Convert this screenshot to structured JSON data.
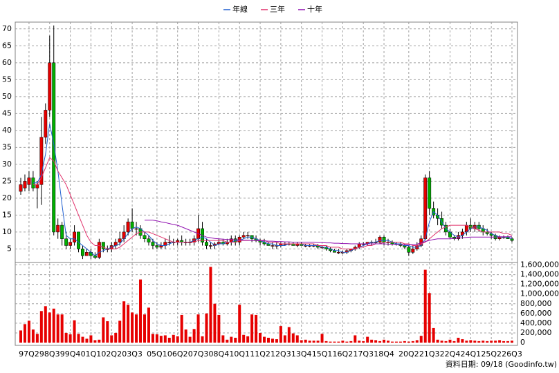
{
  "chart_data": {
    "type": "candlestick",
    "categories": [
      null,
      null,
      "97Q2",
      null,
      null,
      null,
      null,
      "98Q3",
      null,
      null,
      null,
      null,
      "99Q4",
      null,
      null,
      null,
      null,
      "01Q1",
      null,
      null,
      null,
      null,
      "02Q2",
      null,
      null,
      null,
      null,
      "03Q3",
      null,
      null,
      null,
      null,
      null,
      "05Q1",
      null,
      null,
      null,
      null,
      "06Q2",
      null,
      null,
      null,
      null,
      "07Q3",
      null,
      null,
      null,
      null,
      "08Q4",
      null,
      null,
      null,
      null,
      "10Q1",
      null,
      null,
      null,
      null,
      "11Q2",
      null,
      null,
      null,
      null,
      "12Q3",
      null,
      null,
      null,
      null,
      "13Q4",
      null,
      null,
      null,
      null,
      "15Q1",
      null,
      null,
      null,
      null,
      "16Q2",
      null,
      null,
      null,
      null,
      "17Q3",
      null,
      null,
      null,
      null,
      "18Q4",
      null,
      null,
      null,
      null,
      null,
      "20Q2",
      null,
      null,
      null,
      null,
      "21Q3",
      null,
      null,
      null,
      null,
      "22Q4",
      null,
      null,
      null,
      null,
      "24Q1",
      null,
      null,
      null,
      null,
      "25Q2",
      null,
      null,
      null,
      null,
      "26Q3"
    ],
    "open": [
      22,
      23,
      24,
      26,
      23,
      24,
      38,
      46,
      60,
      10,
      12,
      8,
      6,
      7,
      10,
      5,
      3,
      4,
      3,
      2.5,
      7,
      5,
      5,
      6,
      7,
      8,
      10,
      13,
      11,
      11,
      9,
      8,
      7,
      6,
      5.5,
      6,
      7,
      7,
      7,
      7.5,
      7,
      7,
      7,
      8,
      11,
      7,
      6,
      6,
      6.5,
      7,
      6.5,
      7,
      8,
      7,
      8.5,
      9,
      9,
      8,
      7.5,
      7,
      6.5,
      6,
      6,
      6,
      6.5,
      6.5,
      6.5,
      6,
      6.5,
      6,
      6,
      6,
      6,
      5.5,
      5.5,
      5,
      4.5,
      4,
      4,
      4,
      4.5,
      5,
      5.5,
      6.5,
      6.5,
      7,
      7,
      7,
      8.5,
      7,
      7,
      6.5,
      6.5,
      6,
      5.5,
      4,
      5,
      6,
      8,
      26,
      17,
      15,
      14,
      12,
      10,
      8.5,
      8,
      9,
      10,
      12,
      11,
      12,
      11,
      10,
      9.5,
      9,
      8,
      8.5,
      8.5,
      8
    ],
    "high": [
      26,
      27,
      28,
      28,
      25,
      44,
      48,
      68,
      71,
      14,
      13,
      10,
      8,
      12,
      10,
      6,
      5,
      5,
      4,
      8,
      7,
      6,
      7,
      8,
      10,
      12,
      14,
      17,
      13,
      12,
      10,
      9,
      8,
      7,
      7,
      8,
      9,
      8,
      8,
      9,
      8,
      8,
      9,
      15,
      13,
      8,
      7,
      7,
      8,
      8,
      8,
      9,
      9,
      9,
      10,
      10,
      9,
      9,
      8,
      8,
      7,
      7,
      7,
      7,
      7,
      7,
      7,
      7,
      7,
      6.5,
      6.5,
      6.5,
      6.5,
      6,
      6,
      5.5,
      5,
      5,
      4.5,
      5,
      5,
      6,
      7,
      7,
      7,
      7.5,
      8,
      9,
      9,
      8,
      7.5,
      7,
      7,
      6.5,
      6,
      6,
      7,
      9,
      27,
      28,
      19,
      17,
      16,
      13,
      11,
      9,
      10,
      11,
      13,
      14,
      13,
      13,
      12,
      11,
      10,
      9.5,
      9,
      9,
      9,
      8.5
    ],
    "low": [
      21,
      22,
      22,
      22,
      17,
      18,
      36,
      44,
      9,
      8,
      6,
      5,
      5,
      6,
      4,
      2,
      3,
      2,
      2,
      2,
      4,
      4,
      4,
      5,
      6,
      7,
      9,
      10,
      9,
      8,
      7,
      6,
      5,
      5,
      5,
      5,
      6,
      6,
      6,
      6,
      6,
      6,
      6,
      7,
      6,
      5,
      5,
      5,
      6,
      6,
      6,
      6,
      6,
      6,
      8,
      8,
      7,
      7,
      6,
      6,
      6,
      5,
      5,
      5.5,
      6,
      6,
      6,
      5.5,
      6,
      5.5,
      5.5,
      5.5,
      5,
      5,
      4.5,
      4,
      4,
      3.5,
      3.5,
      3.5,
      4,
      4.5,
      5,
      6,
      6,
      6,
      6.5,
      6.5,
      6,
      6,
      6,
      6,
      5.5,
      5,
      3,
      3.5,
      4.5,
      5.5,
      7.5,
      15,
      14,
      12,
      11,
      9,
      8,
      7.5,
      7.5,
      8,
      9,
      10,
      10,
      10,
      9,
      9,
      8,
      7.5,
      7.5,
      8,
      8,
      7
    ],
    "close": [
      24,
      25,
      26,
      23,
      24,
      38,
      46,
      60,
      10,
      12,
      8,
      6,
      7,
      10,
      5,
      3,
      4,
      3,
      2.5,
      7,
      5,
      5,
      6,
      7,
      8,
      10,
      13,
      11,
      11,
      9,
      8,
      7,
      6,
      5.5,
      6,
      7,
      7,
      7,
      7.5,
      7,
      7,
      7,
      8,
      11,
      7,
      6,
      6,
      6.5,
      7,
      6.5,
      7,
      8,
      7,
      8.5,
      9,
      9,
      8,
      7.5,
      7,
      6.5,
      6,
      6,
      6,
      6.5,
      6.5,
      6.5,
      6,
      6.5,
      6,
      6,
      6,
      6,
      5.5,
      5.5,
      5,
      4.5,
      4,
      4,
      4,
      4.5,
      5,
      5.5,
      6.5,
      6.5,
      7,
      7,
      7,
      8.5,
      7,
      7,
      6.5,
      6.5,
      6,
      5.5,
      4,
      5,
      6,
      8,
      26,
      17,
      15,
      14,
      12,
      10,
      8.5,
      8,
      9,
      10,
      12,
      11,
      12,
      11,
      10,
      9.5,
      9,
      8,
      8.5,
      8.5,
      8,
      7.5
    ],
    "up_color": "#e60000",
    "down_color": "#00b000",
    "ylim": [
      1,
      72
    ],
    "yticks": [
      5,
      10,
      15,
      20,
      25,
      30,
      35,
      40,
      45,
      50,
      55,
      60,
      65,
      70
    ],
    "grid": true,
    "legend": "top",
    "lines": [
      {
        "name": "年線",
        "color": "#1f5fd0",
        "values": [
          null,
          null,
          null,
          24.5,
          24.5,
          27,
          33,
          42,
          36,
          28,
          18,
          9,
          8,
          8,
          7,
          6,
          5,
          4,
          3,
          4,
          4.5,
          5,
          5.5,
          6,
          6.5,
          8,
          9.5,
          11,
          11.5,
          11,
          10,
          9,
          7.5,
          6.5,
          6,
          6,
          6.5,
          7,
          7,
          7,
          7,
          7,
          7.5,
          8,
          8.5,
          8,
          7,
          6,
          6.5,
          6.5,
          7,
          7,
          7.5,
          7.5,
          8,
          8.5,
          8.5,
          8,
          7.5,
          7,
          6.5,
          6.5,
          6,
          6,
          6,
          6.5,
          6.5,
          6.5,
          6.5,
          6,
          6,
          6,
          6,
          5.5,
          5.5,
          5,
          4.5,
          4.5,
          4,
          4,
          4.5,
          5,
          5.5,
          6,
          6.5,
          7,
          7,
          7.5,
          7.5,
          7.5,
          7,
          6.5,
          6.5,
          6,
          6,
          5.5,
          5.5,
          6,
          8,
          13,
          16,
          15,
          13,
          11,
          10,
          9,
          8.5,
          9,
          10,
          11,
          11.5,
          11.5,
          11,
          10.5,
          9.5,
          9,
          8.5,
          8.5,
          8.5,
          8
        ]
      },
      {
        "name": "三年",
        "color": "#e0306a",
        "values": [
          null,
          null,
          null,
          24,
          24,
          26,
          29,
          32,
          31,
          28,
          26,
          24,
          21,
          18,
          15,
          12,
          9,
          7,
          6,
          6,
          5.5,
          5,
          5,
          5,
          5.5,
          6.5,
          7.5,
          8.5,
          9.5,
          10,
          10,
          10,
          9.5,
          9,
          8.5,
          8,
          7.5,
          7,
          7,
          7,
          7,
          7,
          7,
          7.5,
          7.5,
          7.5,
          7.5,
          7.5,
          7.5,
          7.5,
          7,
          7,
          7,
          7.5,
          7.5,
          7.5,
          7.5,
          7.5,
          7.5,
          7.5,
          7,
          7,
          7,
          6.5,
          6.5,
          6.5,
          6.5,
          6.5,
          6.5,
          6.5,
          6.5,
          6.5,
          6,
          6,
          6,
          5.5,
          5.5,
          5.5,
          5,
          5,
          5,
          5,
          5.5,
          5.5,
          6,
          6,
          6.5,
          6.5,
          7,
          7,
          7,
          7,
          7,
          6.5,
          6.5,
          6,
          6,
          6.5,
          7,
          8,
          9,
          10,
          11,
          11.5,
          12,
          12,
          12,
          12,
          12,
          11.5,
          11,
          10.5,
          10,
          10,
          10,
          10,
          10,
          9.5,
          9.5,
          9
        ]
      },
      {
        "name": "十年",
        "color": "#9010b0",
        "values": [
          null,
          null,
          null,
          null,
          null,
          null,
          null,
          null,
          null,
          null,
          null,
          null,
          null,
          null,
          null,
          null,
          null,
          null,
          null,
          null,
          null,
          null,
          null,
          null,
          null,
          null,
          null,
          null,
          null,
          null,
          13.5,
          13.5,
          13.5,
          13.3,
          13,
          12.8,
          12.5,
          12.2,
          12,
          11.5,
          11,
          10.5,
          10,
          9.5,
          9,
          8.5,
          8.3,
          8.1,
          8,
          7.9,
          7.8,
          7.8,
          7.7,
          7.7,
          7.6,
          7.6,
          7.5,
          7.5,
          7.4,
          7.4,
          7.3,
          7.3,
          7.2,
          7.2,
          7.1,
          7.1,
          7,
          7,
          7,
          7,
          7,
          7,
          6.9,
          6.9,
          6.8,
          6.8,
          6.7,
          6.7,
          6.6,
          6.6,
          6.5,
          6.5,
          6.5,
          6.5,
          6.5,
          6.5,
          6.5,
          6.5,
          6.5,
          6.4,
          6.4,
          6.3,
          6.3,
          6.2,
          6.2,
          6.3,
          6.4,
          6.8,
          7.2,
          7.5,
          7.8,
          8,
          8,
          8,
          8,
          8.1,
          8.2,
          8.3,
          8.4,
          8.5,
          8.5,
          8.5,
          8.5,
          8.5,
          8.5,
          8.5,
          8.6,
          8.6,
          8.6,
          8.6
        ]
      }
    ],
    "volume": {
      "color": "#e60000",
      "ylim": [
        0,
        1650000
      ],
      "yticks": [
        0,
        {
          "value": 200000,
          "label": "200,000"
        },
        {
          "value": 400000,
          "label": "400,000"
        },
        {
          "value": 600000,
          "label": "600,000"
        },
        {
          "value": 800000,
          "label": "800,000"
        },
        {
          "value": 1000000,
          "label": "1,000,000"
        },
        {
          "value": 1200000,
          "label": "1,200,000"
        },
        {
          "value": 1400000,
          "label": "1,400,000"
        },
        {
          "value": 1600000,
          "label": "1,600,000"
        }
      ],
      "values": [
        250000,
        380000,
        450000,
        270000,
        180000,
        650000,
        750000,
        620000,
        700000,
        580000,
        580000,
        200000,
        170000,
        460000,
        180000,
        120000,
        80000,
        150000,
        50000,
        60000,
        520000,
        440000,
        150000,
        200000,
        450000,
        850000,
        780000,
        620000,
        580000,
        1300000,
        580000,
        720000,
        180000,
        170000,
        140000,
        150000,
        100000,
        160000,
        130000,
        570000,
        270000,
        120000,
        280000,
        580000,
        130000,
        600000,
        1560000,
        800000,
        570000,
        150000,
        60000,
        120000,
        100000,
        780000,
        160000,
        130000,
        580000,
        570000,
        200000,
        120000,
        100000,
        80000,
        70000,
        340000,
        150000,
        320000,
        190000,
        150000,
        50000,
        60000,
        40000,
        40000,
        40000,
        180000,
        30000,
        20000,
        20000,
        20000,
        40000,
        20000,
        30000,
        150000,
        40000,
        30000,
        120000,
        60000,
        50000,
        30000,
        60000,
        40000,
        20000,
        20000,
        20000,
        30000,
        20000,
        30000,
        50000,
        140000,
        1500000,
        1020000,
        300000,
        60000,
        40000,
        30000,
        60000,
        30000,
        100000,
        70000,
        40000,
        50000,
        40000,
        30000,
        40000,
        30000,
        40000,
        40000,
        50000,
        30000,
        30000,
        40000
      ]
    },
    "footer": "資料日期: 09/18 (Goodinfo.tw)"
  }
}
